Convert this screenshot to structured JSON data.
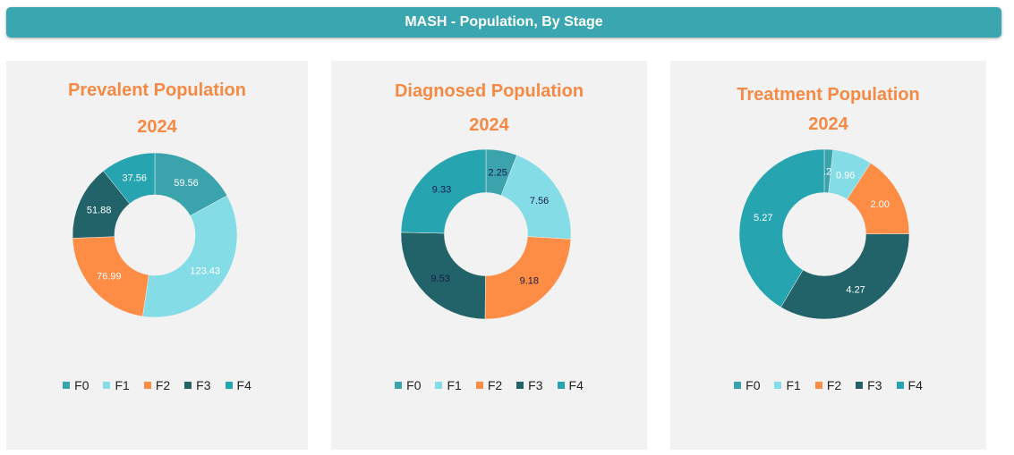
{
  "header": {
    "title": "MASH - Population, By Stage"
  },
  "colors": {
    "F0": "#3aa3ac",
    "F1": "#84dde6",
    "F2": "#fd8c45",
    "F3": "#22636a",
    "F4": "#26a4af"
  },
  "panels": [
    {
      "title": "Prevalent Population",
      "year": "2024"
    },
    {
      "title": "Diagnosed Population",
      "year": "2024"
    },
    {
      "title": "Treatment Population",
      "year": "2024"
    }
  ],
  "chart_data": [
    {
      "type": "pie",
      "title": "Prevalent Population",
      "subtitle": "2024",
      "categories": [
        "F0",
        "F1",
        "F2",
        "F3",
        "F4"
      ],
      "values": [
        59.56,
        123.43,
        76.99,
        51.88,
        37.56
      ],
      "labels": [
        "59.56",
        "123.43",
        "76.99",
        "51.88",
        "37.56"
      ],
      "legend": "bottom"
    },
    {
      "type": "pie",
      "title": "Diagnosed Population",
      "subtitle": "2024",
      "categories": [
        "F0",
        "F1",
        "F2",
        "F3",
        "F4"
      ],
      "values": [
        2.25,
        7.56,
        9.18,
        9.53,
        9.33
      ],
      "labels": [
        "2.25",
        "7.56",
        "9.18",
        "9.53",
        "9.33"
      ],
      "legend": "bottom"
    },
    {
      "type": "pie",
      "title": "Treatment Population",
      "subtitle": "2024",
      "categories": [
        "F0",
        "F1",
        "F2",
        "F3",
        "F4"
      ],
      "values": [
        0.21,
        0.96,
        2.0,
        4.27,
        5.27
      ],
      "labels": [
        "0.21",
        "0.96",
        "2.00",
        "4.27",
        "5.27"
      ],
      "legend": "bottom"
    }
  ]
}
